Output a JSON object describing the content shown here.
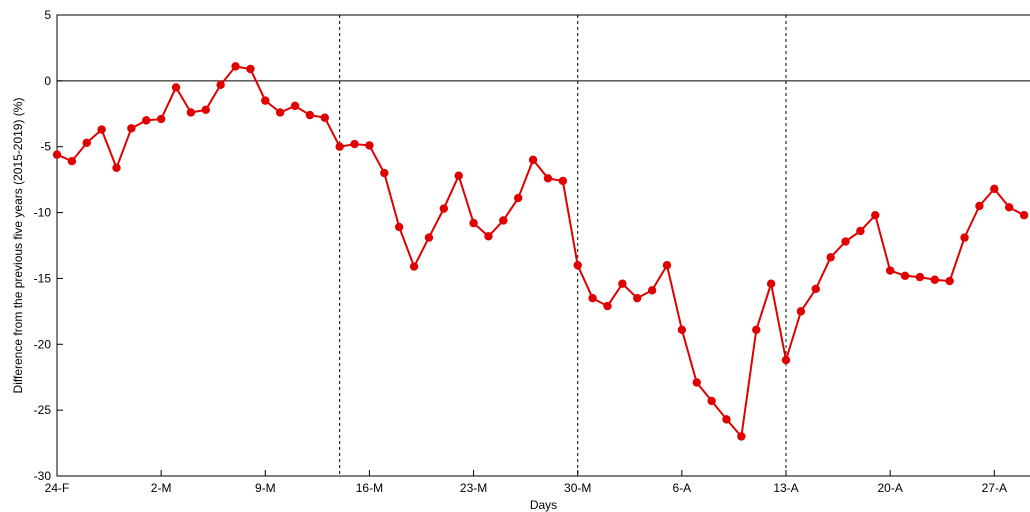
{
  "chart_data": {
    "type": "line",
    "title": "",
    "xlabel": "Days",
    "ylabel": "Difference from the previous five years (2015-2019) (%)",
    "ylim": [
      -30,
      5
    ],
    "yticks": [
      5,
      0,
      -5,
      -10,
      -15,
      -20,
      -25,
      -30
    ],
    "xticks": [
      {
        "day": 0,
        "label": "24-F"
      },
      {
        "day": 7,
        "label": "2-M"
      },
      {
        "day": 14,
        "label": "9-M"
      },
      {
        "day": 21,
        "label": "16-M"
      },
      {
        "day": 28,
        "label": "23-M"
      },
      {
        "day": 35,
        "label": "30-M"
      },
      {
        "day": 42,
        "label": "6-A"
      },
      {
        "day": 49,
        "label": "13-A"
      },
      {
        "day": 56,
        "label": "20-A"
      },
      {
        "day": 63,
        "label": "27-A"
      }
    ],
    "xlim": [
      0,
      65.4
    ],
    "reference_lines": {
      "horizontal": [
        0
      ],
      "vertical_dashed_days": [
        19,
        35,
        49
      ]
    },
    "grid": false,
    "legend": "none",
    "series": [
      {
        "color": "#e00000",
        "x": [
          0,
          1,
          2,
          3,
          4,
          5,
          6,
          7,
          8,
          9,
          10,
          11,
          12,
          13,
          14,
          15,
          16,
          17,
          18,
          19,
          20,
          21,
          22,
          23,
          24,
          25,
          26,
          27,
          28,
          29,
          30,
          31,
          32,
          33,
          34,
          35,
          36,
          37,
          38,
          39,
          40,
          41,
          42,
          43,
          44,
          45,
          46,
          47,
          48,
          49,
          50,
          51,
          52,
          53,
          54,
          55,
          56,
          57,
          58,
          59,
          60,
          61,
          62,
          63,
          64,
          65
        ],
        "y": [
          -5.6,
          -6.1,
          -4.7,
          -3.7,
          -6.6,
          -3.6,
          -3.0,
          -2.9,
          -0.5,
          -2.4,
          -2.2,
          -0.3,
          1.1,
          0.9,
          -1.5,
          -2.4,
          -1.9,
          -2.6,
          -2.8,
          -5.0,
          -4.8,
          -4.9,
          -7.0,
          -11.1,
          -14.1,
          -11.9,
          -9.7,
          -7.2,
          -10.8,
          -11.8,
          -10.6,
          -8.9,
          -6.0,
          -7.4,
          -7.6,
          -14.0,
          -16.5,
          -17.1,
          -15.4,
          -16.5,
          -15.9,
          -14.0,
          -18.9,
          -22.9,
          -24.3,
          -25.7,
          -27.0,
          -18.9,
          -15.4,
          -21.2,
          -17.5,
          -15.8,
          -13.4,
          -12.2,
          -11.4,
          -10.2,
          -14.4,
          -14.8,
          -14.9,
          -15.1,
          -15.2,
          -11.9,
          -9.5,
          -8.2,
          -9.6,
          -10.2
        ]
      }
    ]
  }
}
